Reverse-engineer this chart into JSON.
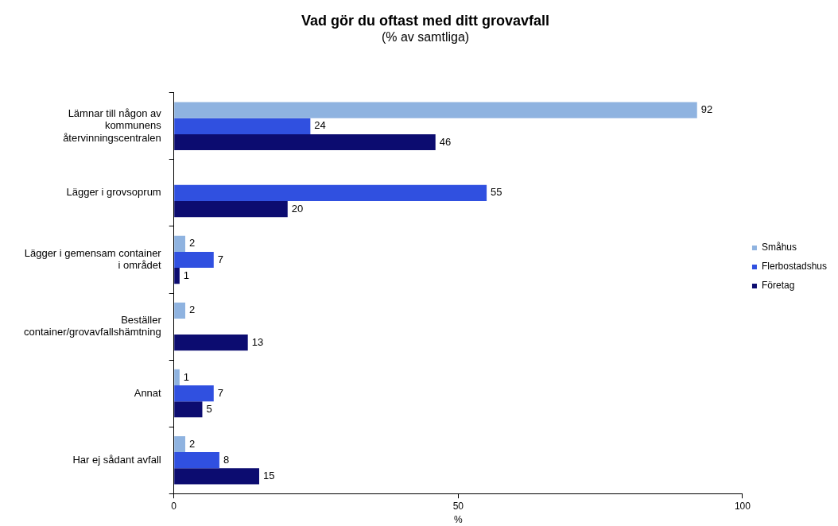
{
  "chart_data": {
    "type": "bar",
    "orientation": "horizontal",
    "title": "Vad gör du oftast med ditt grovavfall",
    "subtitle": "(% av samtliga)",
    "xlabel": "%",
    "categories": [
      "Lämnar till någon av kommunens återvinningscentralen",
      "Lägger i grovsoprum",
      "Lägger i gemensam container i området",
      "Beställer container/grovavfallshämtning",
      "Annat",
      "Har ej sådant avfall"
    ],
    "series": [
      {
        "name": "Småhus",
        "color": "#8fb3e0",
        "values": [
          92,
          null,
          2,
          2,
          1,
          2
        ]
      },
      {
        "name": "Flerbostadshus",
        "color": "#3050e0",
        "values": [
          24,
          55,
          7,
          null,
          7,
          8
        ]
      },
      {
        "name": "Företag",
        "color": "#0c0c70",
        "values": [
          46,
          20,
          1,
          13,
          5,
          15
        ]
      }
    ],
    "xlim": [
      0,
      100
    ],
    "xticks": [
      0,
      50,
      100
    ],
    "grid": false,
    "legend": "right",
    "data_labels": true
  }
}
